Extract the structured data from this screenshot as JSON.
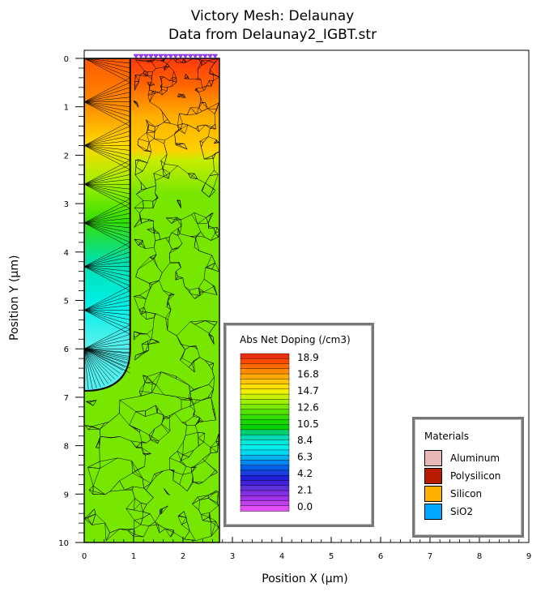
{
  "title": {
    "line1": "Victory Mesh: Delaunay",
    "line2": "Data from Delaunay2_IGBT.str"
  },
  "axes": {
    "xlabel": "Position X (µm)",
    "ylabel": "Position Y (µm)",
    "xlim": [
      0,
      9
    ],
    "ylim": [
      0,
      10
    ],
    "y_inverted": true,
    "x_ticks": [
      "0",
      "1",
      "2",
      "3",
      "4",
      "5",
      "6",
      "7",
      "8",
      "9"
    ],
    "y_ticks": [
      "0",
      "1",
      "2",
      "3",
      "4",
      "5",
      "6",
      "7",
      "8",
      "9",
      "10"
    ]
  },
  "device": {
    "width_um": 2.75,
    "oxide_width_um": 1.0,
    "trench_bottom_um": 6.0,
    "trench_radius_um": 1.0,
    "silicon_background_color": "#77e600",
    "oxide_gradient": [
      {
        "y": 0,
        "color": "#ff5a00"
      },
      {
        "y": 1,
        "color": "#ff8c00"
      },
      {
        "y": 1.8,
        "color": "#ffd900"
      },
      {
        "y": 2.6,
        "color": "#a5f000"
      },
      {
        "y": 3.4,
        "color": "#35e000"
      },
      {
        "y": 4.3,
        "color": "#00e0b0"
      },
      {
        "y": 5.2,
        "color": "#00f0e8"
      },
      {
        "y": 6.0,
        "color": "#55f0ee"
      }
    ]
  },
  "doping_legend": {
    "title": "Abs Net Doping (/cm3)",
    "labels": [
      "18.9",
      "16.8",
      "14.7",
      "12.6",
      "10.5",
      "8.4",
      "6.3",
      "4.2",
      "2.1",
      "0.0"
    ],
    "colors": [
      "#e83010",
      "#ff4a00",
      "#ff6a00",
      "#ff8c00",
      "#ffaa00",
      "#ffc400",
      "#ffe000",
      "#f0f000",
      "#c8f000",
      "#a0ee00",
      "#78e800",
      "#55e200",
      "#35dc00",
      "#18d800",
      "#00d200",
      "#00d070",
      "#00d8b0",
      "#00e8d8",
      "#00f0f0",
      "#00d8f0",
      "#00b0f0",
      "#0088f0",
      "#0060e8",
      "#1840e0",
      "#2020d8",
      "#4020d8",
      "#6030d8",
      "#8030e0",
      "#a030e8",
      "#c040e8",
      "#e050f0"
    ]
  },
  "materials_legend": {
    "title": "Materials",
    "items": [
      {
        "label": "Aluminum",
        "color": "#e8b8b8"
      },
      {
        "label": "Polysilicon",
        "color": "#b81c00"
      },
      {
        "label": "Silicon",
        "color": "#ffb000"
      },
      {
        "label": "SiO2",
        "color": "#00a8ff"
      }
    ]
  }
}
